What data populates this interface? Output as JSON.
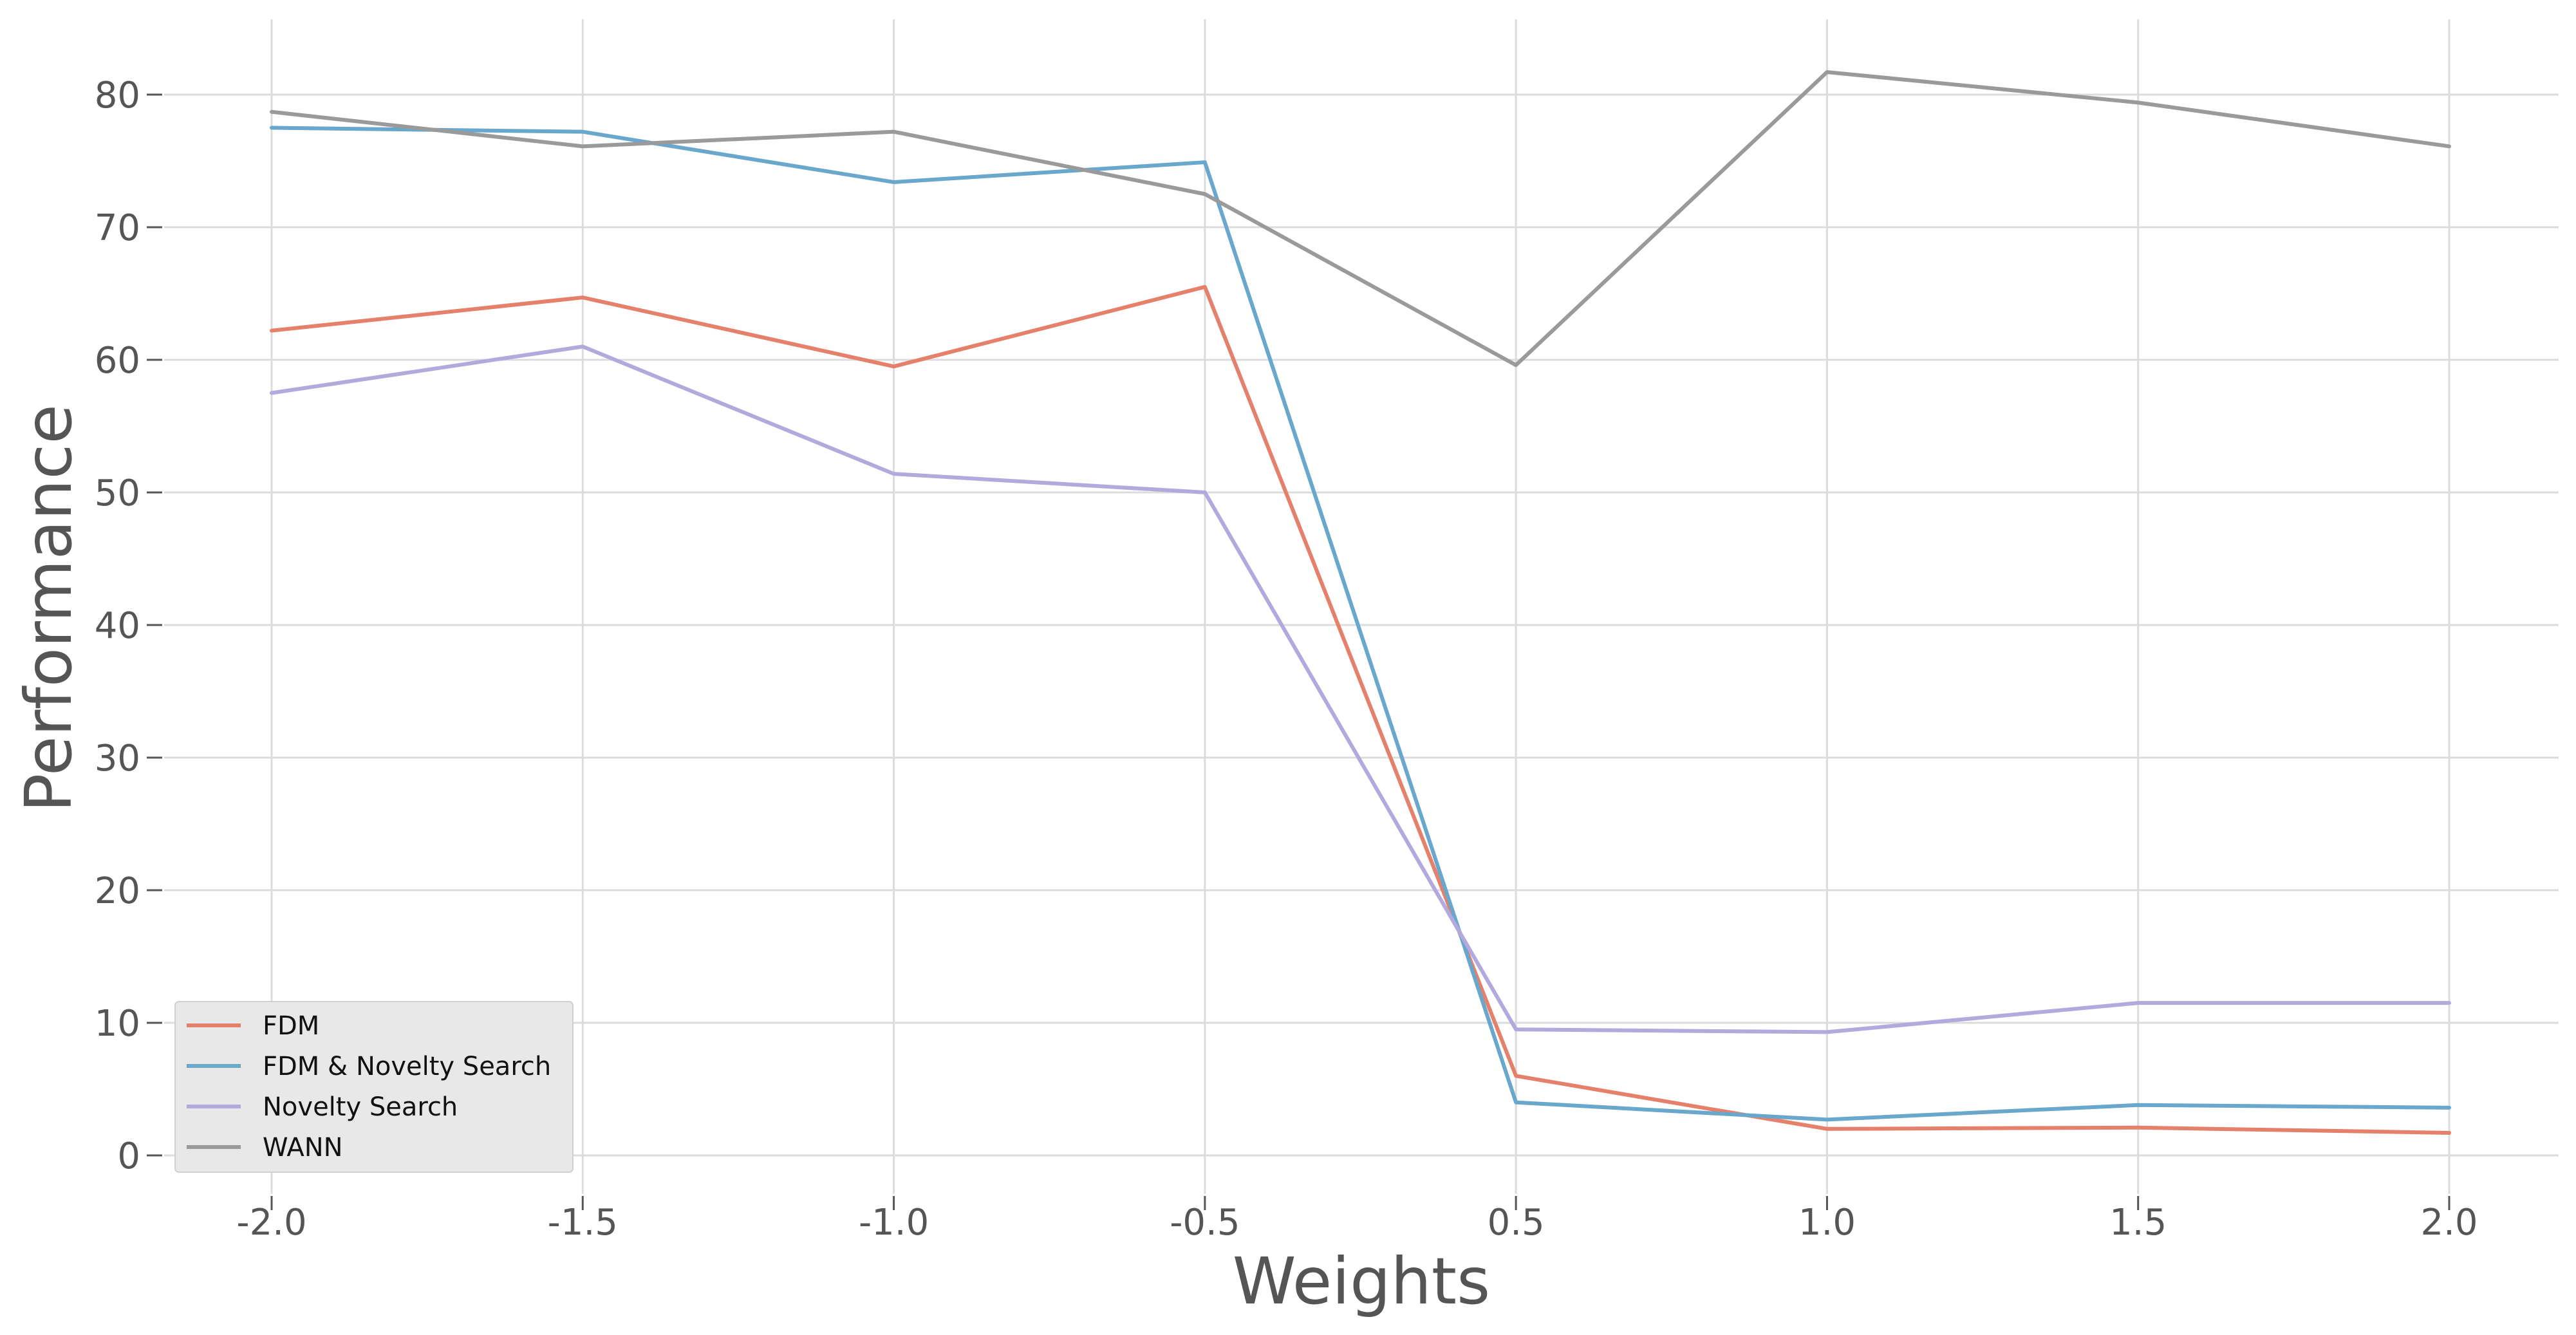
{
  "chart_data": {
    "type": "line",
    "xlabel": "Weights",
    "ylabel": "Performance",
    "categories": [
      "-2.0",
      "-1.5",
      "-1.0",
      "-0.5",
      "0.5",
      "1.0",
      "1.5",
      "2.0"
    ],
    "ylim": [
      -2,
      86
    ],
    "yticks": [
      0,
      10,
      20,
      30,
      40,
      50,
      60,
      70,
      80
    ],
    "grid": true,
    "legend": "bottom-left",
    "series": [
      {
        "name": "FDM",
        "color": "#e5806b",
        "values": [
          62.2,
          64.7,
          59.5,
          65.5,
          6.0,
          2.0,
          2.1,
          1.7
        ]
      },
      {
        "name": "FDM & Novelty Search",
        "color": "#6aa7cc",
        "values": [
          77.5,
          77.2,
          73.4,
          74.9,
          4.0,
          2.7,
          3.8,
          3.6
        ]
      },
      {
        "name": "Novelty Search",
        "color": "#b3a9dc",
        "values": [
          57.5,
          61.0,
          51.4,
          50.0,
          9.5,
          9.3,
          11.5,
          11.5
        ]
      },
      {
        "name": "WANN",
        "color": "#9a9a9a",
        "values": [
          78.7,
          76.1,
          77.2,
          72.5,
          59.6,
          81.7,
          79.4,
          76.1
        ]
      }
    ]
  }
}
